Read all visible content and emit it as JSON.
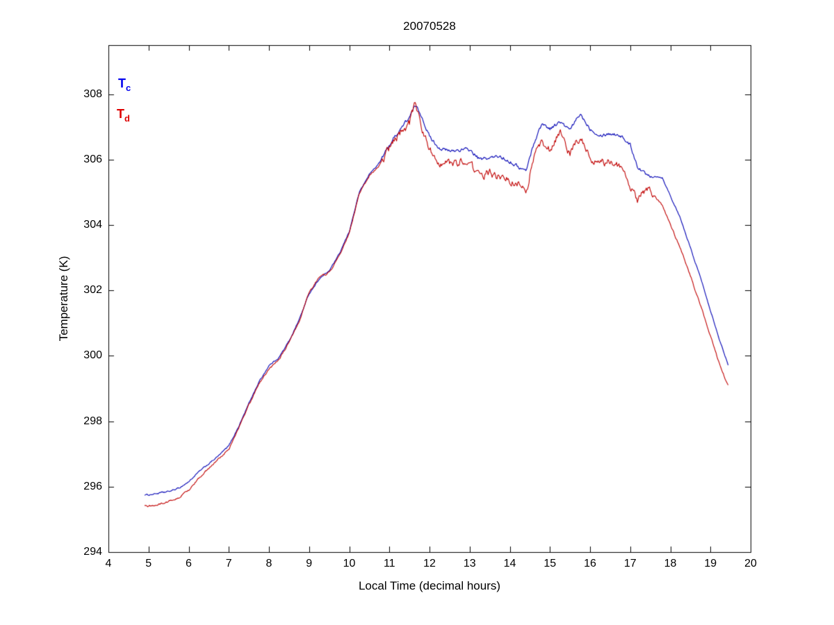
{
  "chart_data": {
    "type": "line",
    "title": "20070528",
    "xlabel": "Local Time (decimal hours)",
    "ylabel": "Temperature (K)",
    "xlim": [
      4,
      20
    ],
    "ylim": [
      294,
      309.5
    ],
    "xticks": [
      4,
      5,
      6,
      7,
      8,
      9,
      10,
      11,
      12,
      13,
      14,
      15,
      16,
      17,
      18,
      19,
      20
    ],
    "yticks": [
      294,
      296,
      298,
      300,
      302,
      304,
      306,
      308
    ],
    "grid": false,
    "legend_position": "top-left-inside",
    "background_color": "#ffffff",
    "axis_color": "#000000",
    "x": [
      4.9,
      5.0,
      5.25,
      5.5,
      5.75,
      6.0,
      6.25,
      6.5,
      6.75,
      7.0,
      7.25,
      7.5,
      7.75,
      8.0,
      8.25,
      8.5,
      8.75,
      9.0,
      9.25,
      9.5,
      9.75,
      10.0,
      10.25,
      10.5,
      10.75,
      11.0,
      11.25,
      11.5,
      11.65,
      11.8,
      12.0,
      12.25,
      12.5,
      12.75,
      13.0,
      13.25,
      13.5,
      13.75,
      14.0,
      14.25,
      14.4,
      14.6,
      14.8,
      15.0,
      15.25,
      15.5,
      15.75,
      16.0,
      16.25,
      16.5,
      16.75,
      17.0,
      17.2,
      17.4,
      17.6,
      17.8,
      18.0,
      18.25,
      18.5,
      18.75,
      19.0,
      19.25,
      19.45
    ],
    "series": [
      {
        "name": "Tc",
        "label": "T",
        "sub": "c",
        "color": "#0000b4",
        "label_color": "#0000ee",
        "noise": [
          0.035,
          0.09
        ],
        "values": [
          295.75,
          295.75,
          295.8,
          295.85,
          295.95,
          296.15,
          296.45,
          296.7,
          296.95,
          297.25,
          297.85,
          298.55,
          299.2,
          299.7,
          299.95,
          300.45,
          301.1,
          301.9,
          302.35,
          302.6,
          303.1,
          303.8,
          305.0,
          305.55,
          305.9,
          306.45,
          306.9,
          307.3,
          307.65,
          307.35,
          306.7,
          306.35,
          306.25,
          306.3,
          306.3,
          306.0,
          306.05,
          306.1,
          305.95,
          305.75,
          305.65,
          306.5,
          307.1,
          306.95,
          307.15,
          306.9,
          307.4,
          306.95,
          306.75,
          306.8,
          306.75,
          306.45,
          305.75,
          305.55,
          305.5,
          305.45,
          304.9,
          304.2,
          303.3,
          302.4,
          301.4,
          300.4,
          299.7
        ]
      },
      {
        "name": "Td",
        "label": "T",
        "sub": "d",
        "color": "#c00000",
        "label_color": "#dd0000",
        "noise": [
          0.045,
          0.2
        ],
        "values": [
          295.4,
          295.4,
          295.45,
          295.55,
          295.65,
          295.9,
          296.25,
          296.55,
          296.85,
          297.15,
          297.8,
          298.5,
          299.15,
          299.6,
          299.9,
          300.4,
          301.05,
          301.95,
          302.4,
          302.55,
          303.05,
          303.75,
          304.95,
          305.5,
          305.8,
          306.35,
          306.8,
          307.1,
          307.75,
          307.0,
          306.3,
          305.95,
          305.85,
          305.95,
          305.9,
          305.5,
          305.6,
          305.45,
          305.35,
          305.25,
          304.95,
          306.1,
          306.6,
          306.3,
          306.85,
          306.15,
          306.7,
          306.0,
          305.9,
          305.95,
          305.8,
          305.2,
          304.75,
          305.1,
          304.9,
          304.6,
          304.0,
          303.3,
          302.45,
          301.55,
          300.6,
          299.65,
          299.05
        ]
      }
    ]
  }
}
